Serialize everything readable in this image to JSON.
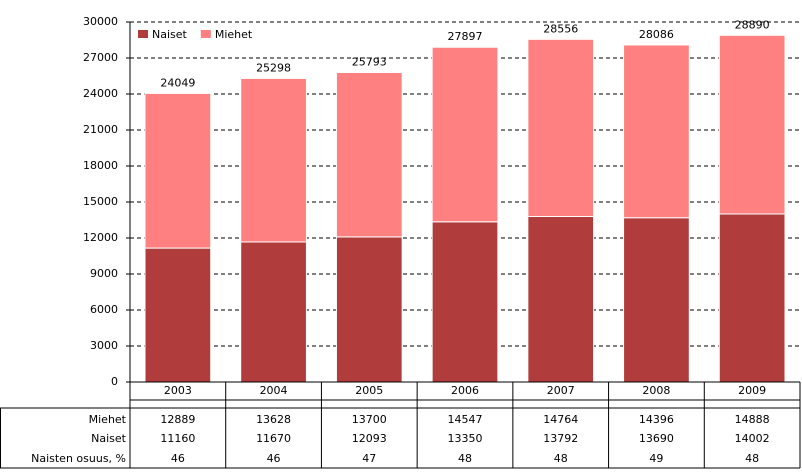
{
  "chart_data": {
    "type": "stacked_bar",
    "categories": [
      "2003",
      "2004",
      "2005",
      "2006",
      "2007",
      "2008",
      "2009"
    ],
    "series": [
      {
        "name": "Naiset",
        "color": "#b03c3c",
        "values": [
          11160,
          11670,
          12093,
          13350,
          13792,
          13690,
          14002
        ]
      },
      {
        "name": "Miehet",
        "color": "#ff8080",
        "values": [
          12889,
          13628,
          13700,
          14547,
          14764,
          14396,
          14888
        ]
      }
    ],
    "totals": [
      24049,
      25298,
      25793,
      27897,
      28556,
      28086,
      28890
    ],
    "share": {
      "name": "Naisten osuus, %",
      "values": [
        46,
        46,
        47,
        48,
        48,
        49,
        48
      ]
    },
    "ylim": [
      0,
      30000
    ],
    "yticks": [
      0,
      3000,
      6000,
      9000,
      12000,
      15000,
      18000,
      21000,
      24000,
      27000,
      30000
    ],
    "grid": true,
    "legend": "top-left"
  }
}
